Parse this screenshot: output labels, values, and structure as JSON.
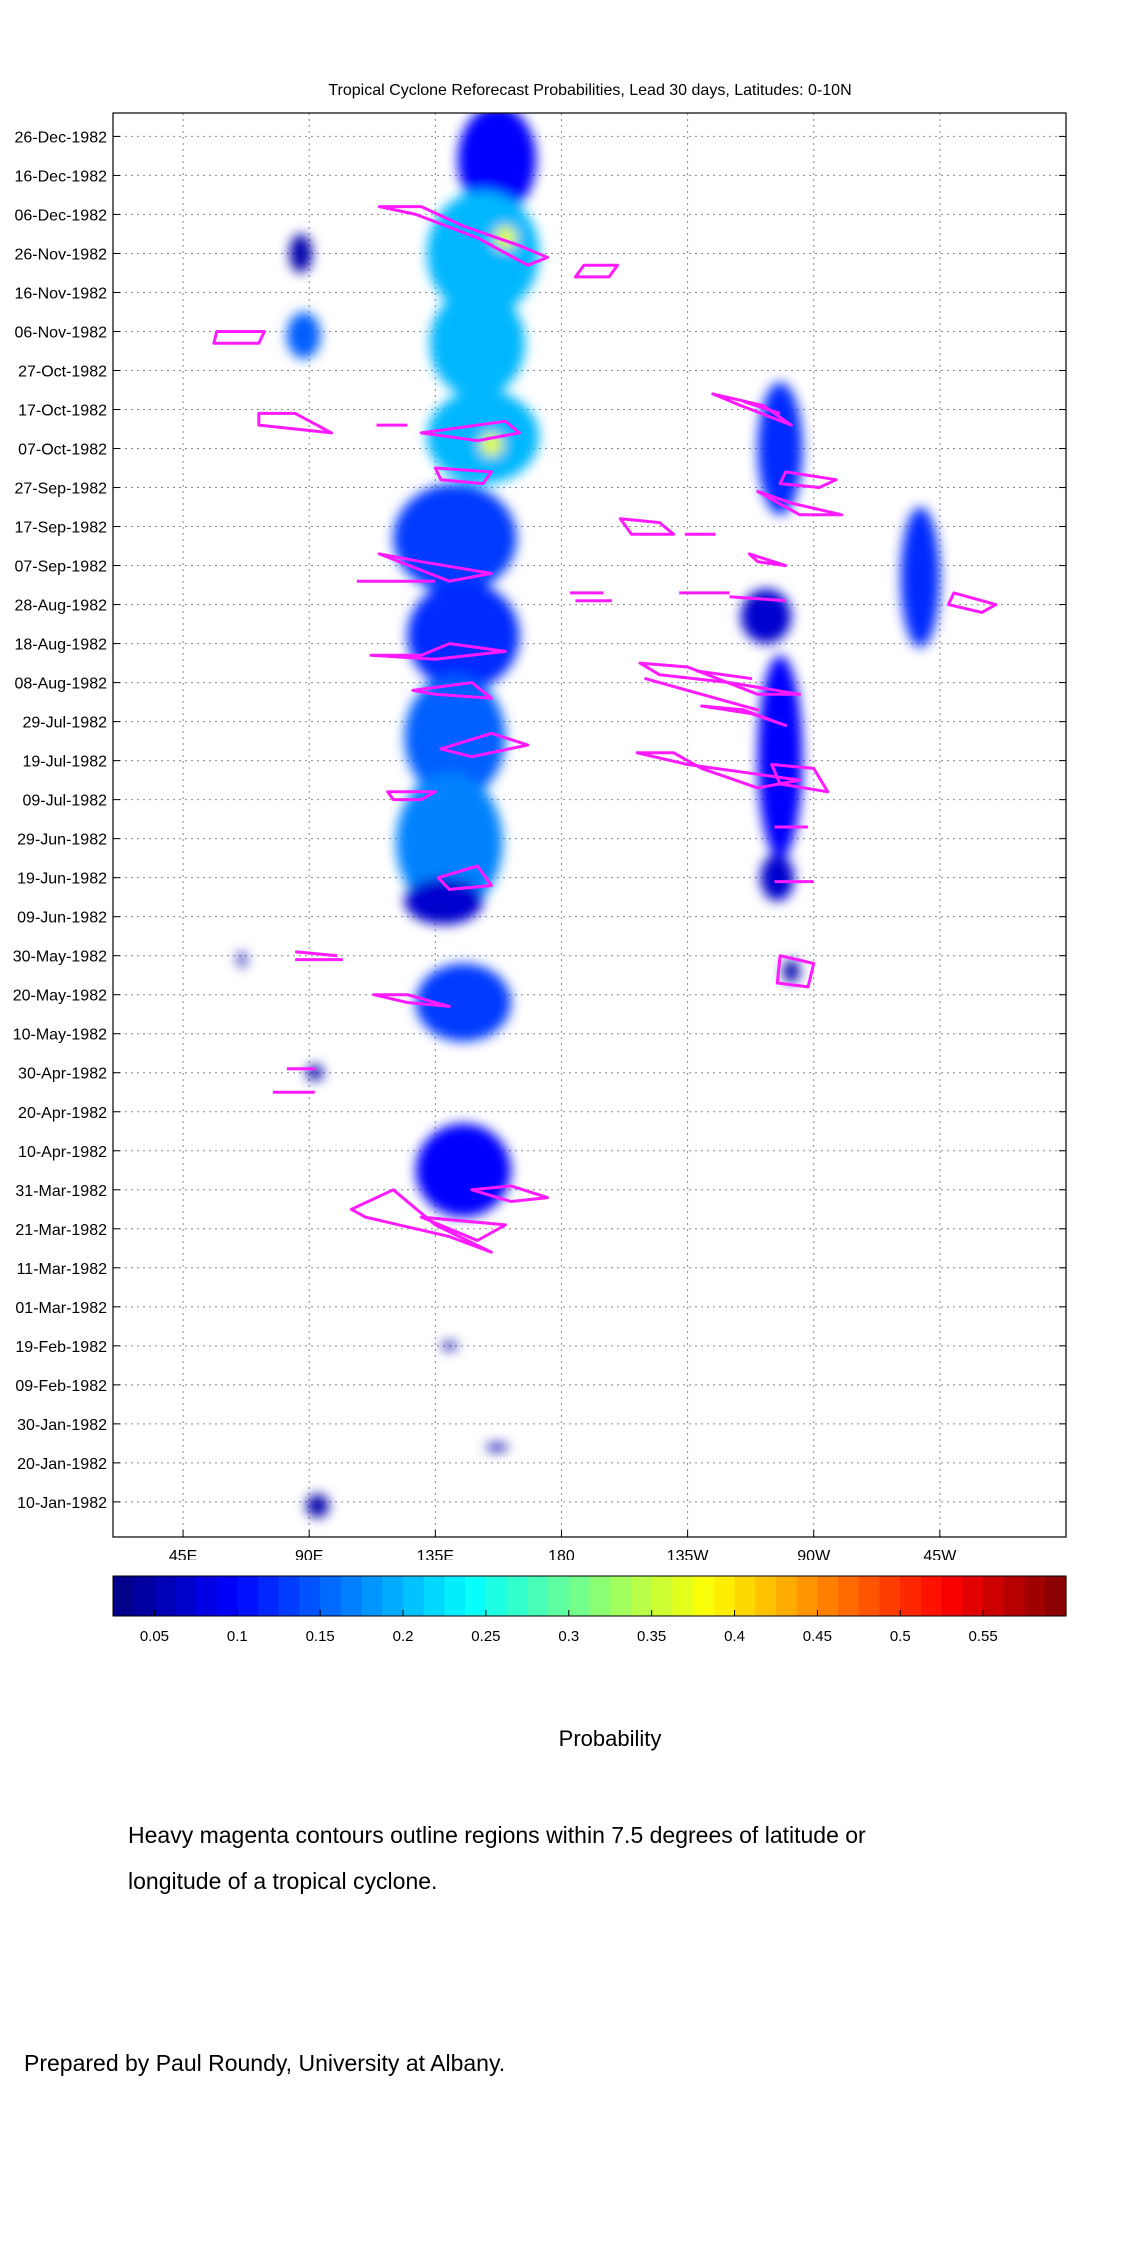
{
  "chart_data": {
    "type": "heatmap",
    "title": "Tropical Cyclone Reforecast Probabilities, Lead 30 days, Latitudes: 0-10N",
    "xlabel": "",
    "ylabel": "",
    "x_range_deg_east": [
      20,
      360
    ],
    "x_ticks": [
      {
        "lon": 45,
        "label": "45E"
      },
      {
        "lon": 90,
        "label": "90E"
      },
      {
        "lon": 135,
        "label": "135E"
      },
      {
        "lon": 180,
        "label": "180"
      },
      {
        "lon": 225,
        "label": "135W"
      },
      {
        "lon": 270,
        "label": "90W"
      },
      {
        "lon": 315,
        "label": "45W"
      }
    ],
    "y_range_dates": [
      "1982-01-01",
      "1983-01-01"
    ],
    "y_ticks": [
      {
        "date": "1982-01-10",
        "label": "10-Jan-1982"
      },
      {
        "date": "1982-01-20",
        "label": "20-Jan-1982"
      },
      {
        "date": "1982-01-30",
        "label": "30-Jan-1982"
      },
      {
        "date": "1982-02-09",
        "label": "09-Feb-1982"
      },
      {
        "date": "1982-02-19",
        "label": "19-Feb-1982"
      },
      {
        "date": "1982-03-01",
        "label": "01-Mar-1982"
      },
      {
        "date": "1982-03-11",
        "label": "11-Mar-1982"
      },
      {
        "date": "1982-03-21",
        "label": "21-Mar-1982"
      },
      {
        "date": "1982-03-31",
        "label": "31-Mar-1982"
      },
      {
        "date": "1982-04-10",
        "label": "10-Apr-1982"
      },
      {
        "date": "1982-04-20",
        "label": "20-Apr-1982"
      },
      {
        "date": "1982-04-30",
        "label": "30-Apr-1982"
      },
      {
        "date": "1982-05-10",
        "label": "10-May-1982"
      },
      {
        "date": "1982-05-20",
        "label": "20-May-1982"
      },
      {
        "date": "1982-05-30",
        "label": "30-May-1982"
      },
      {
        "date": "1982-06-09",
        "label": "09-Jun-1982"
      },
      {
        "date": "1982-06-19",
        "label": "19-Jun-1982"
      },
      {
        "date": "1982-06-29",
        "label": "29-Jun-1982"
      },
      {
        "date": "1982-07-09",
        "label": "09-Jul-1982"
      },
      {
        "date": "1982-07-19",
        "label": "19-Jul-1982"
      },
      {
        "date": "1982-07-29",
        "label": "29-Jul-1982"
      },
      {
        "date": "1982-08-08",
        "label": "08-Aug-1982"
      },
      {
        "date": "1982-08-18",
        "label": "18-Aug-1982"
      },
      {
        "date": "1982-08-28",
        "label": "28-Aug-1982"
      },
      {
        "date": "1982-09-07",
        "label": "07-Sep-1982"
      },
      {
        "date": "1982-09-17",
        "label": "17-Sep-1982"
      },
      {
        "date": "1982-09-27",
        "label": "27-Sep-1982"
      },
      {
        "date": "1982-10-07",
        "label": "07-Oct-1982"
      },
      {
        "date": "1982-10-17",
        "label": "17-Oct-1982"
      },
      {
        "date": "1982-10-27",
        "label": "27-Oct-1982"
      },
      {
        "date": "1982-11-06",
        "label": "06-Nov-1982"
      },
      {
        "date": "1982-11-16",
        "label": "16-Nov-1982"
      },
      {
        "date": "1982-11-26",
        "label": "26-Nov-1982"
      },
      {
        "date": "1982-12-06",
        "label": "06-Dec-1982"
      },
      {
        "date": "1982-12-16",
        "label": "16-Dec-1982"
      },
      {
        "date": "1982-12-26",
        "label": "26-Dec-1982"
      }
    ],
    "grid": true,
    "colorbar": {
      "label": "Probability",
      "range": [
        0.025,
        0.6
      ],
      "ticks": [
        0.05,
        0.1,
        0.15,
        0.2,
        0.25,
        0.3,
        0.35,
        0.4,
        0.45,
        0.5,
        0.55
      ],
      "tick_labels": [
        "0.05",
        "0.1",
        "0.15",
        "0.2",
        "0.25",
        "0.3",
        "0.35",
        "0.4",
        "0.45",
        "0.5",
        "0.55"
      ],
      "colormap": "jet"
    },
    "probability_regions": [
      {
        "lon": 157,
        "date": "1982-12-20",
        "lon_half_width": 14,
        "day_half_width": 14,
        "value": 0.1
      },
      {
        "lon": 152,
        "date": "1982-11-26",
        "lon_half_width": 20,
        "day_half_width": 16,
        "value": 0.2
      },
      {
        "lon": 160,
        "date": "1982-11-30",
        "lon_half_width": 4,
        "day_half_width": 3,
        "value": 0.37
      },
      {
        "lon": 150,
        "date": "1982-11-03",
        "lon_half_width": 17,
        "day_half_width": 14,
        "value": 0.2
      },
      {
        "lon": 152,
        "date": "1982-10-10",
        "lon_half_width": 20,
        "day_half_width": 12,
        "value": 0.2
      },
      {
        "lon": 155,
        "date": "1982-10-08",
        "lon_half_width": 4,
        "day_half_width": 3,
        "value": 0.37
      },
      {
        "lon": 142,
        "date": "1982-09-14",
        "lon_half_width": 22,
        "day_half_width": 14,
        "value": 0.13
      },
      {
        "lon": 145,
        "date": "1982-08-20",
        "lon_half_width": 20,
        "day_half_width": 14,
        "value": 0.12
      },
      {
        "lon": 142,
        "date": "1982-07-25",
        "lon_half_width": 18,
        "day_half_width": 16,
        "value": 0.15
      },
      {
        "lon": 140,
        "date": "1982-06-28",
        "lon_half_width": 19,
        "day_half_width": 18,
        "value": 0.17
      },
      {
        "lon": 138,
        "date": "1982-06-13",
        "lon_half_width": 14,
        "day_half_width": 6,
        "value": 0.07
      },
      {
        "lon": 145,
        "date": "1982-05-18",
        "lon_half_width": 17,
        "day_half_width": 10,
        "value": 0.13
      },
      {
        "lon": 145,
        "date": "1982-04-05",
        "lon_half_width": 17,
        "day_half_width": 12,
        "value": 0.1
      },
      {
        "lon": 88,
        "date": "1982-11-05",
        "lon_half_width": 6,
        "day_half_width": 6,
        "value": 0.15
      },
      {
        "lon": 87,
        "date": "1982-11-26",
        "lon_half_width": 4,
        "day_half_width": 5,
        "value": 0.05
      },
      {
        "lon": 258,
        "date": "1982-10-07",
        "lon_half_width": 8,
        "day_half_width": 17,
        "value": 0.12
      },
      {
        "lon": 253,
        "date": "1982-08-25",
        "lon_half_width": 9,
        "day_half_width": 7,
        "value": 0.07
      },
      {
        "lon": 258,
        "date": "1982-07-20",
        "lon_half_width": 8,
        "day_half_width": 26,
        "value": 0.1
      },
      {
        "lon": 257,
        "date": "1982-06-19",
        "lon_half_width": 6,
        "day_half_width": 6,
        "value": 0.07
      },
      {
        "lon": 262,
        "date": "1982-05-26",
        "lon_half_width": 3,
        "day_half_width": 3,
        "value": 0.05
      },
      {
        "lon": 308,
        "date": "1982-09-04",
        "lon_half_width": 7,
        "day_half_width": 18,
        "value": 0.12
      },
      {
        "lon": 92,
        "date": "1982-04-30",
        "lon_half_width": 3,
        "day_half_width": 2,
        "value": 0.05
      },
      {
        "lon": 93,
        "date": "1982-01-09",
        "lon_half_width": 4,
        "day_half_width": 3,
        "value": 0.05
      },
      {
        "lon": 157,
        "date": "1982-01-24",
        "lon_half_width": 4,
        "day_half_width": 1,
        "value": 0.05
      },
      {
        "lon": 140,
        "date": "1982-02-19",
        "lon_half_width": 3,
        "day_half_width": 1,
        "value": 0.05
      },
      {
        "lon": 66,
        "date": "1982-05-29",
        "lon_half_width": 1,
        "day_half_width": 2,
        "value": 0.05
      }
    ],
    "cyclone_contours": [
      [
        [
          115,
          "1982-12-08"
        ],
        [
          130,
          "1982-12-08"
        ],
        [
          145,
          "1982-12-03"
        ],
        [
          165,
          "1982-11-28"
        ],
        [
          175,
          "1982-11-25"
        ],
        [
          168,
          "1982-11-23"
        ],
        [
          150,
          "1982-11-30"
        ],
        [
          128,
          "1982-12-06"
        ]
      ],
      [
        [
          188,
          "1982-11-23"
        ],
        [
          200,
          "1982-11-23"
        ],
        [
          197,
          "1982-11-20"
        ],
        [
          185,
          "1982-11-20"
        ]
      ],
      [
        [
          57,
          "1982-11-06"
        ],
        [
          74,
          "1982-11-06"
        ],
        [
          72,
          "1982-11-03"
        ],
        [
          56,
          "1982-11-03"
        ]
      ],
      [
        [
          72,
          "1982-10-16"
        ],
        [
          85,
          "1982-10-16"
        ],
        [
          98,
          "1982-10-11"
        ],
        [
          85,
          "1982-10-12"
        ],
        [
          72,
          "1982-10-13"
        ]
      ],
      [
        [
          114,
          "1982-10-13"
        ],
        [
          125,
          "1982-10-13"
        ]
      ],
      [
        [
          130,
          "1982-10-11"
        ],
        [
          150,
          "1982-10-09"
        ],
        [
          165,
          "1982-10-11"
        ],
        [
          160,
          "1982-10-14"
        ],
        [
          140,
          "1982-10-12"
        ]
      ],
      [
        [
          135,
          "1982-10-02"
        ],
        [
          155,
          "1982-10-01"
        ],
        [
          152,
          "1982-09-28"
        ],
        [
          137,
          "1982-09-29"
        ]
      ],
      [
        [
          115,
          "1982-09-10"
        ],
        [
          140,
          "1982-09-03"
        ],
        [
          155,
          "1982-09-05"
        ],
        [
          130,
          "1982-09-08"
        ]
      ],
      [
        [
          107,
          "1982-09-03"
        ],
        [
          135,
          "1982-09-03"
        ]
      ],
      [
        [
          112,
          "1982-08-15"
        ],
        [
          130,
          "1982-08-15"
        ],
        [
          140,
          "1982-08-18"
        ],
        [
          160,
          "1982-08-16"
        ],
        [
          135,
          "1982-08-14"
        ]
      ],
      [
        [
          127,
          "1982-08-06"
        ],
        [
          148,
          "1982-08-08"
        ],
        [
          155,
          "1982-08-04"
        ],
        [
          135,
          "1982-08-05"
        ]
      ],
      [
        [
          137,
          "1982-07-22"
        ],
        [
          155,
          "1982-07-26"
        ],
        [
          168,
          "1982-07-23"
        ],
        [
          148,
          "1982-07-20"
        ]
      ],
      [
        [
          118,
          "1982-07-11"
        ],
        [
          135,
          "1982-07-11"
        ],
        [
          130,
          "1982-07-09"
        ],
        [
          120,
          "1982-07-09"
        ]
      ],
      [
        [
          136,
          "1982-06-19"
        ],
        [
          150,
          "1982-06-22"
        ],
        [
          155,
          "1982-06-17"
        ],
        [
          140,
          "1982-06-16"
        ]
      ],
      [
        [
          113,
          "1982-05-20"
        ],
        [
          125,
          "1982-05-20"
        ],
        [
          140,
          "1982-05-17"
        ],
        [
          125,
          "1982-05-18"
        ]
      ],
      [
        [
          85,
          "1982-05-31"
        ],
        [
          100,
          "1982-05-30"
        ]
      ],
      [
        [
          85,
          "1982-05-29"
        ],
        [
          102,
          "1982-05-29"
        ]
      ],
      [
        [
          82,
          "1982-05-01"
        ],
        [
          92,
          "1982-05-01"
        ]
      ],
      [
        [
          77,
          "1982-04-25"
        ],
        [
          92,
          "1982-04-25"
        ]
      ],
      [
        [
          105,
          "1982-03-26"
        ],
        [
          120,
          "1982-03-31"
        ],
        [
          135,
          "1982-03-22"
        ],
        [
          155,
          "1982-03-15"
        ],
        [
          140,
          "1982-03-19"
        ],
        [
          110,
          "1982-03-24"
        ]
      ],
      [
        [
          130,
          "1982-03-24"
        ],
        [
          160,
          "1982-03-22"
        ],
        [
          150,
          "1982-03-18"
        ]
      ],
      [
        [
          148,
          "1982-03-31"
        ],
        [
          162,
          "1982-03-28"
        ],
        [
          175,
          "1982-03-29"
        ],
        [
          162,
          "1982-04-01"
        ]
      ],
      [
        [
          183,
          "1982-08-31"
        ],
        [
          195,
          "1982-08-31"
        ]
      ],
      [
        [
          185,
          "1982-08-29"
        ],
        [
          198,
          "1982-08-29"
        ]
      ],
      [
        [
          201,
          "1982-09-19"
        ],
        [
          215,
          "1982-09-18"
        ],
        [
          220,
          "1982-09-15"
        ],
        [
          205,
          "1982-09-15"
        ]
      ],
      [
        [
          224,
          "1982-09-15"
        ],
        [
          235,
          "1982-09-15"
        ]
      ],
      [
        [
          222,
          "1982-08-31"
        ],
        [
          240,
          "1982-08-31"
        ]
      ],
      [
        [
          234,
          "1982-10-21"
        ],
        [
          252,
          "1982-10-18"
        ],
        [
          262,
          "1982-10-13"
        ],
        [
          244,
          "1982-10-18"
        ]
      ],
      [
        [
          245,
          "1982-10-19"
        ],
        [
          258,
          "1982-10-16"
        ]
      ],
      [
        [
          260,
          "1982-10-01"
        ],
        [
          278,
          "1982-09-29"
        ],
        [
          272,
          "1982-09-27"
        ],
        [
          258,
          "1982-09-28"
        ]
      ],
      [
        [
          250,
          "1982-09-26"
        ],
        [
          265,
          "1982-09-20"
        ],
        [
          280,
          "1982-09-20"
        ],
        [
          262,
          "1982-09-23"
        ]
      ],
      [
        [
          247,
          "1982-09-10"
        ],
        [
          260,
          "1982-09-07"
        ],
        [
          250,
          "1982-09-08"
        ]
      ],
      [
        [
          240,
          "1982-08-30"
        ],
        [
          260,
          "1982-08-29"
        ]
      ],
      [
        [
          208,
          "1982-08-13"
        ],
        [
          225,
          "1982-08-12"
        ],
        [
          250,
          "1982-08-05"
        ],
        [
          265,
          "1982-08-05"
        ],
        [
          240,
          "1982-08-08"
        ],
        [
          215,
          "1982-08-10"
        ]
      ],
      [
        [
          210,
          "1982-08-09"
        ],
        [
          230,
          "1982-08-05"
        ],
        [
          250,
          "1982-08-01"
        ],
        [
          225,
          "1982-08-06"
        ]
      ],
      [
        [
          228,
          "1982-08-11"
        ],
        [
          248,
          "1982-08-09"
        ]
      ],
      [
        [
          230,
          "1982-08-02"
        ],
        [
          248,
          "1982-07-31"
        ],
        [
          260,
          "1982-07-28"
        ],
        [
          245,
          "1982-08-01"
        ]
      ],
      [
        [
          207,
          "1982-07-21"
        ],
        [
          220,
          "1982-07-21"
        ],
        [
          230,
          "1982-07-17"
        ],
        [
          250,
          "1982-07-12"
        ],
        [
          265,
          "1982-07-14"
        ],
        [
          245,
          "1982-07-16"
        ],
        [
          225,
          "1982-07-18"
        ]
      ],
      [
        [
          255,
          "1982-07-18"
        ],
        [
          270,
          "1982-07-17"
        ],
        [
          275,
          "1982-07-11"
        ],
        [
          258,
          "1982-07-13"
        ]
      ],
      [
        [
          256,
          "1982-07-02"
        ],
        [
          268,
          "1982-07-02"
        ]
      ],
      [
        [
          256,
          "1982-06-18"
        ],
        [
          270,
          "1982-06-18"
        ]
      ],
      [
        [
          258,
          "1982-05-30"
        ],
        [
          270,
          "1982-05-28"
        ],
        [
          268,
          "1982-05-22"
        ],
        [
          257,
          "1982-05-23"
        ]
      ],
      [
        [
          320,
          "1982-08-31"
        ],
        [
          335,
          "1982-08-28"
        ],
        [
          330,
          "1982-08-26"
        ],
        [
          318,
          "1982-08-28"
        ]
      ]
    ],
    "contour_color": "#ff1aff"
  },
  "annotation": {
    "note": "Heavy magenta contours outline regions within 7.5 degrees of latitude or longitude of a tropical cyclone.",
    "credit": "Prepared by Paul Roundy, University at Albany."
  }
}
